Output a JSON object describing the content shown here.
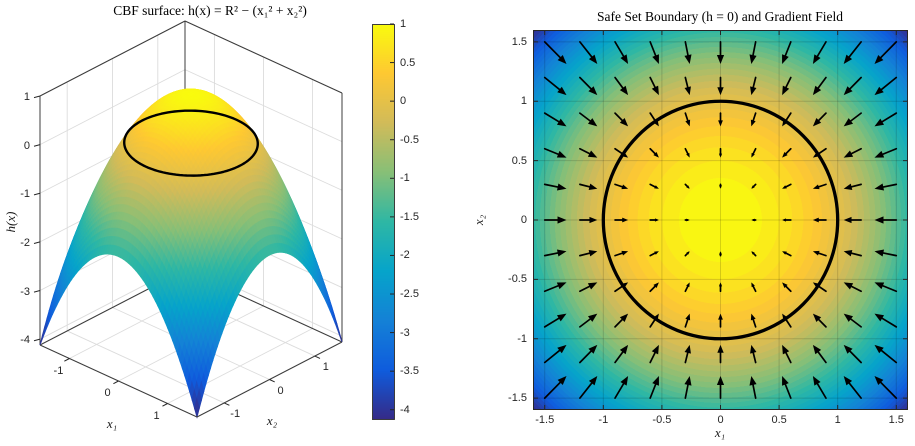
{
  "figure": {
    "background": "#ffffff",
    "axis_color": "#262626",
    "grid_color_3d": "#dcdcdc",
    "grid_alpha_2d": 0.15
  },
  "colormap": {
    "name": "parula",
    "anchors": [
      "#352a87",
      "#0f5cdd",
      "#1481d6",
      "#06a4ca",
      "#2eb7a4",
      "#87bf77",
      "#d1bb59",
      "#fec832",
      "#f9fb0e"
    ]
  },
  "chart_data": [
    {
      "type": "surface",
      "title": "CBF surface: h(x) = R² − (x₁² + x₂²)",
      "xlabel": "x₁",
      "ylabel": "x₂",
      "zlabel": "h(x)",
      "function": "h(x) = R² − (x₁² + x₂²)",
      "R": 1,
      "x1_range": [
        -1.6,
        1.6
      ],
      "x2_range": [
        -1.6,
        1.6
      ],
      "zlim": [
        -4.12,
        1
      ],
      "x1_ticks": [
        "-1",
        "0",
        "1"
      ],
      "x1_tick_values": [
        -1,
        0,
        1
      ],
      "x2_ticks": [
        "-1",
        "0",
        "1"
      ],
      "x2_tick_values": [
        -1,
        0,
        1
      ],
      "z_ticks": [
        "1",
        "0",
        "-1",
        "-2",
        "-3",
        "-4"
      ],
      "z_tick_values": [
        1,
        0,
        -1,
        -2,
        -3,
        -4
      ],
      "clim": [
        -4.12,
        1
      ],
      "shading": "interp",
      "boundary_circle": {
        "radius": 1,
        "level": 0,
        "color": "#000000"
      }
    },
    {
      "type": "colorbar",
      "range": [
        -4.12,
        1
      ],
      "tick_labels": [
        "1",
        "0.5",
        "0",
        "-0.5",
        "-1",
        "-1.5",
        "-2",
        "-2.5",
        "-3",
        "-3.5",
        "-4"
      ],
      "tick_values": [
        1,
        0.5,
        0,
        -0.5,
        -1,
        -1.5,
        -2,
        -2.5,
        -3,
        -3.5,
        -4
      ]
    },
    {
      "type": "contourf_quiver",
      "title": "Safe Set Boundary (h = 0) and Gradient Field",
      "xlabel": "x₁",
      "ylabel": "x₂",
      "xlim": [
        -1.6,
        1.6
      ],
      "ylim": [
        -1.6,
        1.6
      ],
      "x_tick_labels": [
        "-1.5",
        "-1",
        "-0.5",
        "0",
        "0.5",
        "1",
        "1.5"
      ],
      "x_tick_values": [
        -1.5,
        -1,
        -0.5,
        0,
        0.5,
        1,
        1.5
      ],
      "y_tick_labels": [
        "1.5",
        "1",
        "0.5",
        "0",
        "-0.5",
        "-1",
        "-1.5"
      ],
      "y_tick_values": [
        1.5,
        1,
        0.5,
        0,
        -0.5,
        -1,
        -1.5
      ],
      "contour_level_step": 0.125,
      "clim": [
        -4.12,
        1
      ],
      "quiver": {
        "x_start": -1.5,
        "x_end": 1.5,
        "step": 0.3,
        "vector_field": "∇h = (−2x₁, −2x₂)",
        "color": "#000000"
      },
      "boundary_circle": {
        "radius": 1,
        "level": 0,
        "color": "#000000",
        "linewidth": 3
      }
    }
  ]
}
